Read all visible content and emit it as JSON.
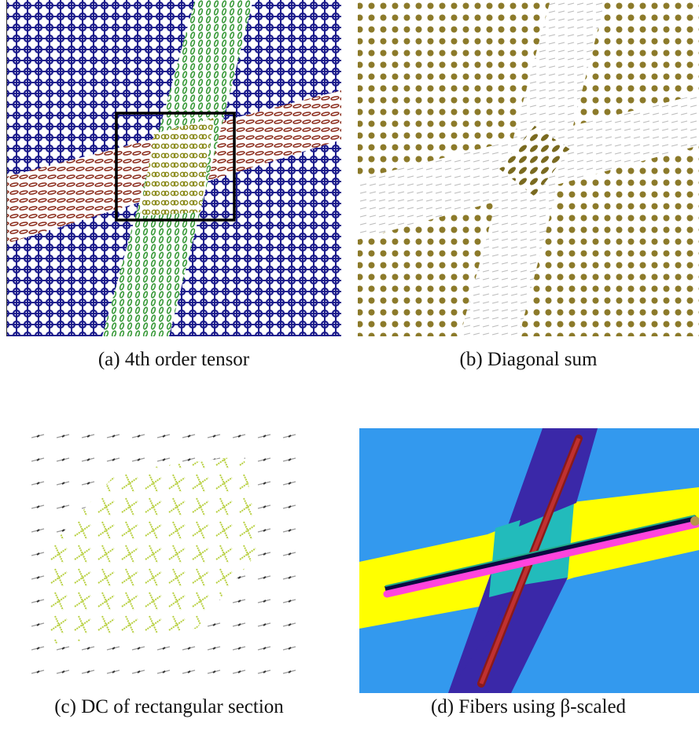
{
  "figures": [
    {
      "caption": "(a) 4th order tensor"
    },
    {
      "caption": "(b) Diagonal sum"
    },
    {
      "caption": "(c) DC of rectangular section"
    },
    {
      "caption": "(d) Fibers using β-scaled"
    }
  ]
}
